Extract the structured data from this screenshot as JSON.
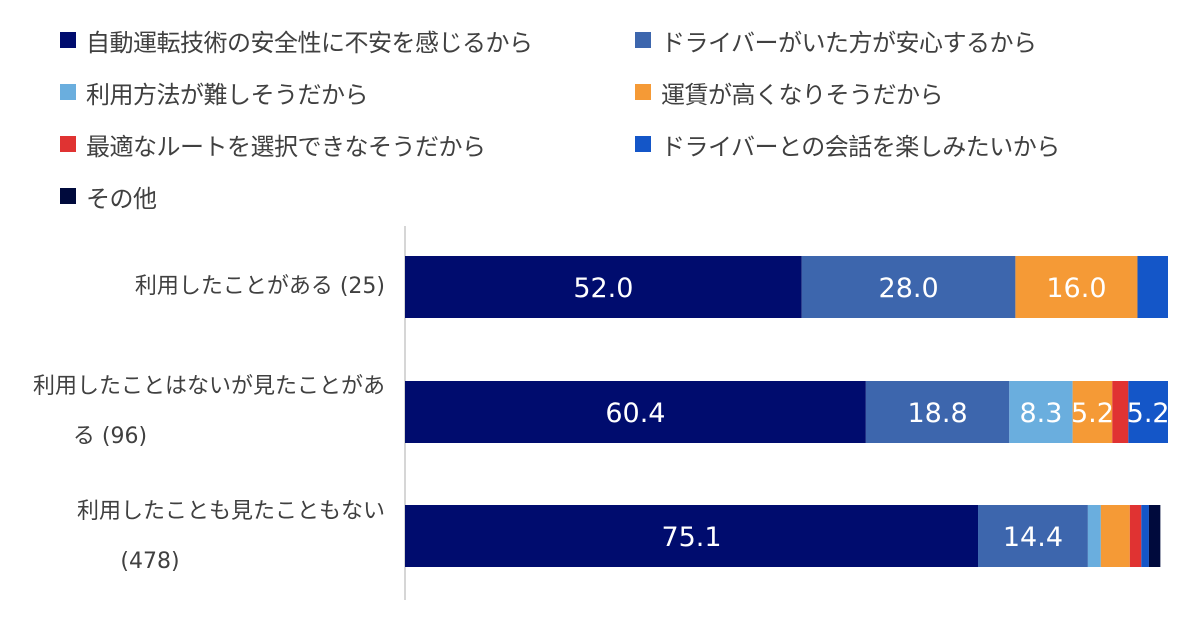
{
  "legend": [
    {
      "label": "自動運転技術の安全性に不安を感じるから",
      "color": "#000c6e"
    },
    {
      "label": "ドライバーがいた方が安心するから",
      "color": "#3d66ad"
    },
    {
      "label": "利用方法が難しそうだから",
      "color": "#6aaede"
    },
    {
      "label": "運賃が高くなりそうだから",
      "color": "#f59a36"
    },
    {
      "label": "最適なルートを選択できなそうだから",
      "color": "#e03332"
    },
    {
      "label": "ドライバーとの会話を楽しみたいから",
      "color": "#1456c8"
    },
    {
      "label": "その他",
      "color": "#000a3c"
    }
  ],
  "rows": [
    {
      "label_line1": "利用したことがある (25)",
      "label_line2": ""
    },
    {
      "label_line1": "利用したことはないが見たことがあ",
      "label_line2": "る (96)"
    },
    {
      "label_line1": "利用したことも見たこともない",
      "label_line2": "(478)"
    }
  ],
  "chart_data": {
    "type": "bar",
    "orientation": "horizontal",
    "stacked": true,
    "percent": true,
    "categories": [
      "利用したことがある (25)",
      "利用したことはないが見たことがある (96)",
      "利用したことも見たこともない (478)"
    ],
    "series": [
      {
        "name": "自動運転技術の安全性に不安を感じるから",
        "values": [
          52.0,
          60.4,
          75.1
        ]
      },
      {
        "name": "ドライバーがいた方が安心するから",
        "values": [
          28.0,
          18.8,
          14.4
        ]
      },
      {
        "name": "利用方法が難しそうだから",
        "values": [
          0.0,
          8.3,
          1.7
        ]
      },
      {
        "name": "運賃が高くなりそうだから",
        "values": [
          16.0,
          5.2,
          3.8
        ]
      },
      {
        "name": "最適なルートを選択できなそうだから",
        "values": [
          0.0,
          2.1,
          1.5
        ]
      },
      {
        "name": "ドライバーとの会話を楽しみたいから",
        "values": [
          4.0,
          5.2,
          1.0
        ]
      },
      {
        "name": "その他",
        "values": [
          0.0,
          0.0,
          1.5
        ]
      }
    ],
    "data_labels": [
      [
        "52.0",
        "28.0",
        "",
        "16.0",
        "",
        "",
        ""
      ],
      [
        "60.4",
        "18.8",
        "8.3",
        "5.2",
        "",
        "5.2",
        ""
      ],
      [
        "75.1",
        "14.4",
        "",
        "",
        "",
        "",
        ""
      ]
    ],
    "xlim": [
      0,
      100
    ],
    "legend_position": "top",
    "grid": false
  }
}
